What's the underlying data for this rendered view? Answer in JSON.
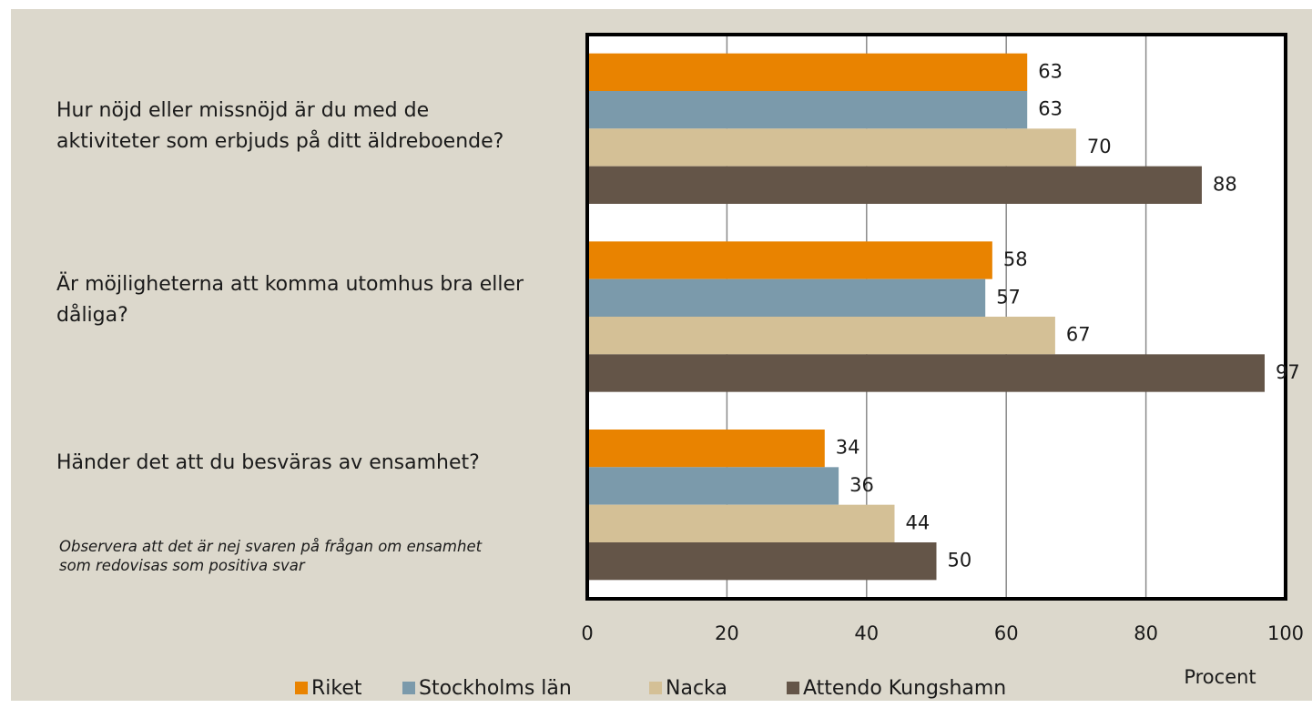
{
  "chart_data": {
    "type": "bar",
    "orientation": "horizontal",
    "categories": [
      "Hur nöjd eller missnöjd är du med de aktiviteter som erbjuds på ditt äldreboende?",
      "Är möjligheterna att komma utomhus bra eller dåliga?",
      "Händer det att du besväras av ensamhet?"
    ],
    "series": [
      {
        "name": "Riket",
        "color": "#e98300",
        "values": [
          63,
          58,
          34
        ]
      },
      {
        "name": "Stockholms län",
        "color": "#7b9aab",
        "values": [
          63,
          57,
          36
        ]
      },
      {
        "name": "Nacka",
        "color": "#d4c096",
        "values": [
          70,
          67,
          44
        ]
      },
      {
        "name": "Attendo Kungshamn",
        "color": "#645548",
        "values": [
          88,
          97,
          50
        ]
      }
    ],
    "xlim": [
      0,
      100
    ],
    "xticks": [
      0,
      20,
      40,
      60,
      80,
      100
    ],
    "grid": true,
    "x_label": "Procent",
    "annotation": "Observera att det är nej svaren på frågan om ensamhet som redovisas som positiva svar",
    "legend": "bottom"
  }
}
